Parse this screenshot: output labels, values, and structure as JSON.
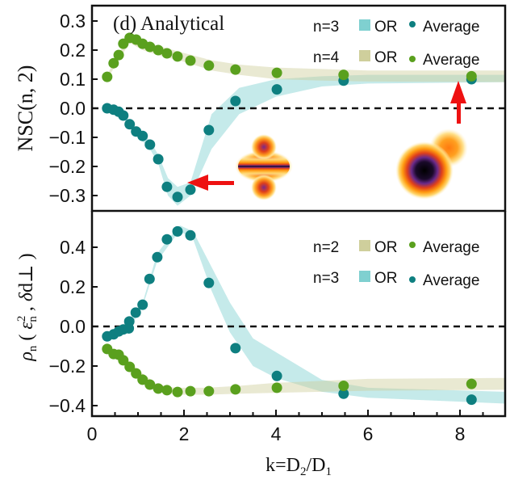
{
  "chart_data": [
    {
      "type": "scatter",
      "panel": "top",
      "title": "(d) Analytical",
      "xlabel": "k=D2/D1",
      "ylabel": "NSC(n, 2)",
      "xlim": [
        0,
        9
      ],
      "ylim": [
        -0.34,
        0.35
      ],
      "yticks": [
        "0.3",
        "0.2",
        "0.1",
        "0.0",
        "−0.1",
        "−0.2",
        "−0.3"
      ],
      "ytick_values": [
        0.3,
        0.2,
        0.1,
        0.0,
        -0.1,
        -0.2,
        -0.3
      ],
      "reference_line": {
        "y": 0,
        "style": "dashed"
      },
      "legend_placement": "top-right",
      "legend": [
        {
          "label": "n=3",
          "band_label": "OR",
          "point_label": "Average",
          "band_color": "#7fd0d0",
          "point_color": "#0e7f80"
        },
        {
          "label": "n=4",
          "band_label": "OR",
          "point_label": "Average",
          "band_color": "#cfcf9c",
          "point_color": "#5aa01e"
        }
      ],
      "series": [
        {
          "name": "n=3 Average",
          "color": "#0e7f80",
          "x": [
            0.33,
            0.47,
            0.58,
            0.68,
            0.82,
            0.96,
            1.1,
            1.26,
            1.44,
            1.63,
            1.86,
            2.14,
            2.54,
            3.12,
            4.02,
            5.47,
            8.25
          ],
          "y": [
            0.0,
            -0.005,
            -0.012,
            -0.025,
            -0.055,
            -0.08,
            -0.095,
            -0.125,
            -0.175,
            -0.27,
            -0.305,
            -0.28,
            -0.075,
            0.025,
            0.065,
            0.095,
            0.1
          ]
        },
        {
          "name": "n=3 OR band",
          "color": "#7fd0d0",
          "x": [
            0.33,
            0.6,
            0.96,
            1.26,
            1.44,
            1.65,
            1.86,
            2.14,
            2.6,
            3.2,
            4.0,
            5.0,
            6.0,
            9.0
          ],
          "lower": [
            -0.005,
            -0.02,
            -0.09,
            -0.14,
            -0.19,
            -0.3,
            -0.335,
            -0.3,
            -0.14,
            -0.02,
            0.04,
            0.075,
            0.085,
            0.09
          ],
          "upper": [
            0.005,
            -0.005,
            -0.07,
            -0.11,
            -0.16,
            -0.24,
            -0.27,
            -0.255,
            -0.02,
            0.07,
            0.1,
            0.11,
            0.115,
            0.115
          ]
        },
        {
          "name": "n=4 Average",
          "color": "#5aa01e",
          "x": [
            0.33,
            0.47,
            0.58,
            0.68,
            0.82,
            0.96,
            1.1,
            1.26,
            1.44,
            1.63,
            1.86,
            2.14,
            2.54,
            3.12,
            4.02,
            5.47,
            8.25
          ],
          "y": [
            0.108,
            0.155,
            0.183,
            0.222,
            0.242,
            0.236,
            0.222,
            0.211,
            0.2,
            0.189,
            0.178,
            0.164,
            0.147,
            0.133,
            0.122,
            0.115,
            0.11
          ]
        },
        {
          "name": "n=4 OR band",
          "color": "#cfcf9c",
          "x": [
            0.33,
            0.6,
            0.82,
            1.1,
            1.5,
            2.0,
            2.6,
            3.2,
            4.0,
            5.0,
            6.0,
            9.0
          ],
          "lower": [
            0.1,
            0.17,
            0.225,
            0.2,
            0.18,
            0.16,
            0.13,
            0.115,
            0.1,
            0.095,
            0.092,
            0.09
          ],
          "upper": [
            0.115,
            0.195,
            0.245,
            0.232,
            0.212,
            0.19,
            0.165,
            0.15,
            0.14,
            0.135,
            0.13,
            0.13
          ]
        }
      ],
      "annotations": [
        {
          "type": "arrow",
          "color": "#ee1111",
          "direction": "left",
          "points_to": {
            "x": 2.2,
            "y": -0.27
          }
        },
        {
          "type": "arrow",
          "color": "#ee1111",
          "direction": "up",
          "points_to": {
            "x": 8.0,
            "y": 0.09
          }
        },
        {
          "type": "inset-heatmap",
          "description": "cross-shaped density with three lobes",
          "near": {
            "x": 3.7,
            "y": -0.2
          }
        },
        {
          "type": "inset-heatmap",
          "description": "two-blob density, large dark core with small orange satellite",
          "near": {
            "x": 7.3,
            "y": -0.2
          }
        }
      ]
    },
    {
      "type": "scatter",
      "panel": "bottom",
      "xlabel": "k=D2/D1",
      "ylabel": "ρn ( εn² , δd⊥ )",
      "xlim": [
        0,
        9
      ],
      "ylim": [
        -0.45,
        0.57
      ],
      "xticks": [
        "0",
        "2",
        "4",
        "6",
        "8"
      ],
      "xtick_values": [
        0,
        2,
        4,
        6,
        8
      ],
      "yticks": [
        "0.4",
        "0.2",
        "0.0",
        "−0.2",
        "−0.4"
      ],
      "ytick_values": [
        0.4,
        0.2,
        0.0,
        -0.2,
        -0.4
      ],
      "reference_line": {
        "y": 0,
        "style": "dashed"
      },
      "legend_placement": "top-right",
      "legend": [
        {
          "label": "n=2",
          "band_label": "OR",
          "point_label": "Average",
          "band_color": "#cfcf9c",
          "point_color": "#5aa01e"
        },
        {
          "label": "n=3",
          "band_label": "OR",
          "point_label": "Average",
          "band_color": "#7fd0d0",
          "point_color": "#0e7f80"
        }
      ],
      "series": [
        {
          "name": "n=3 Average",
          "color": "#0e7f80",
          "x": [
            0.33,
            0.47,
            0.58,
            0.68,
            0.8,
            0.81,
            0.95,
            1.1,
            1.25,
            1.42,
            1.63,
            1.86,
            2.14,
            2.54,
            3.12,
            4.02,
            5.47,
            8.25
          ],
          "y": [
            -0.05,
            -0.04,
            -0.025,
            -0.015,
            -0.01,
            0.025,
            0.07,
            0.11,
            0.24,
            0.35,
            0.44,
            0.48,
            0.46,
            0.22,
            -0.11,
            -0.25,
            -0.34,
            -0.37
          ]
        },
        {
          "name": "n=3 OR band",
          "color": "#7fd0d0",
          "x": [
            0.33,
            0.8,
            1.1,
            1.42,
            1.86,
            1.92,
            2.2,
            2.6,
            3.0,
            3.5,
            4.0,
            5.0,
            6.0,
            9.0
          ],
          "lower": [
            -0.055,
            -0.015,
            0.1,
            0.33,
            0.47,
            0.48,
            0.44,
            0.18,
            -0.03,
            -0.2,
            -0.26,
            -0.33,
            -0.36,
            -0.39
          ],
          "upper": [
            -0.045,
            0.0,
            0.12,
            0.37,
            0.5,
            0.51,
            0.48,
            0.3,
            0.12,
            -0.06,
            -0.13,
            -0.27,
            -0.31,
            -0.33
          ]
        },
        {
          "name": "n=2 Average",
          "color": "#5aa01e",
          "x": [
            0.33,
            0.47,
            0.58,
            0.68,
            0.82,
            0.96,
            1.1,
            1.26,
            1.44,
            1.63,
            1.86,
            2.14,
            2.54,
            3.12,
            4.02,
            5.47,
            8.25
          ],
          "y": [
            -0.114,
            -0.139,
            -0.143,
            -0.171,
            -0.204,
            -0.237,
            -0.269,
            -0.294,
            -0.314,
            -0.322,
            -0.331,
            -0.327,
            -0.327,
            -0.318,
            -0.31,
            -0.3,
            -0.29
          ]
        },
        {
          "name": "n=2 OR band",
          "color": "#cfcf9c",
          "x": [
            0.33,
            0.6,
            1.0,
            1.4,
            1.8,
            2.5,
            3.2,
            4.0,
            5.0,
            6.0,
            9.0
          ],
          "lower": [
            -0.125,
            -0.155,
            -0.255,
            -0.32,
            -0.345,
            -0.345,
            -0.34,
            -0.335,
            -0.33,
            -0.325,
            -0.32
          ],
          "upper": [
            -0.1,
            -0.13,
            -0.22,
            -0.29,
            -0.31,
            -0.31,
            -0.3,
            -0.285,
            -0.275,
            -0.265,
            -0.26
          ]
        }
      ]
    }
  ]
}
